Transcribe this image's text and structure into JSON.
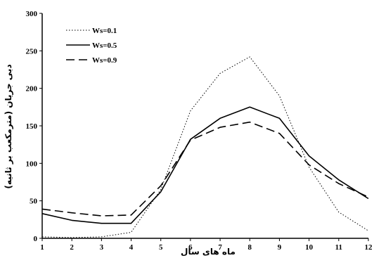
{
  "chart_data": {
    "type": "line",
    "title": "",
    "xlabel": "ماه های سال",
    "ylabel": "دبی جریان (مترمکعب بر ثانیه)",
    "x": [
      1,
      2,
      3,
      4,
      5,
      6,
      7,
      8,
      9,
      10,
      11,
      12
    ],
    "xlim": [
      1,
      12
    ],
    "ylim": [
      0,
      300
    ],
    "yticks": [
      0,
      50,
      100,
      150,
      200,
      250,
      300
    ],
    "grid": false,
    "legend_position": "top-left",
    "series": [
      {
        "name": "Ws=0.1",
        "style": "dotted",
        "color": "#000000",
        "values": [
          2,
          1,
          2,
          8,
          65,
          170,
          220,
          242,
          190,
          95,
          35,
          10
        ]
      },
      {
        "name": "Ws=0.5",
        "style": "solid",
        "color": "#000000",
        "values": [
          33,
          24,
          20,
          20,
          62,
          132,
          160,
          175,
          160,
          110,
          78,
          53
        ]
      },
      {
        "name": "Ws=0.9",
        "style": "dashed",
        "color": "#000000",
        "values": [
          39,
          34,
          30,
          31,
          70,
          131,
          148,
          155,
          140,
          98,
          73,
          55
        ]
      }
    ]
  }
}
